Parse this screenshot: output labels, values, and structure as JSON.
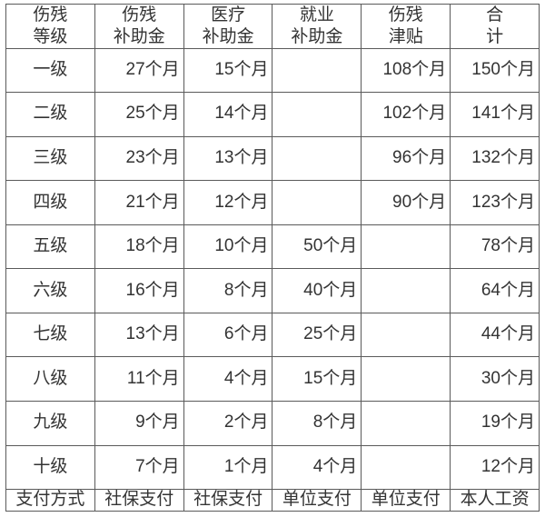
{
  "table": {
    "type": "table",
    "background_color": "#ffffff",
    "border_color": "#5a5a5a",
    "text_color": "#333333",
    "font_size_pt": 15,
    "font_family": "Microsoft YaHei / SimSun",
    "columns": [
      {
        "l1": "伤残",
        "l2": "等级",
        "align": "center"
      },
      {
        "l1": "伤残",
        "l2": "补助金",
        "align": "right"
      },
      {
        "l1": "医疗",
        "l2": "补助金",
        "align": "right"
      },
      {
        "l1": "就业",
        "l2": "补助金",
        "align": "right"
      },
      {
        "l1": "伤残",
        "l2": "津贴",
        "align": "right"
      },
      {
        "l1": "合",
        "l2": "计",
        "align": "right"
      }
    ],
    "rows": [
      [
        "一级",
        "27个月",
        "15个月",
        "",
        "108个月",
        "150个月"
      ],
      [
        "二级",
        "25个月",
        "14个月",
        "",
        "102个月",
        "141个月"
      ],
      [
        "三级",
        "23个月",
        "13个月",
        "",
        "96个月",
        "132个月"
      ],
      [
        "四级",
        "21个月",
        "12个月",
        "",
        "90个月",
        "123个月"
      ],
      [
        "五级",
        "18个月",
        "10个月",
        "50个月",
        "",
        "78个月"
      ],
      [
        "六级",
        "16个月",
        "8个月",
        "40个月",
        "",
        "64个月"
      ],
      [
        "七级",
        "13个月",
        "6个月",
        "25个月",
        "",
        "44个月"
      ],
      [
        "八级",
        "11个月",
        "4个月",
        "15个月",
        "",
        "30个月"
      ],
      [
        "九级",
        "9个月",
        "2个月",
        "8个月",
        "",
        "19个月"
      ],
      [
        "十级",
        "7个月",
        "1个月",
        "4个月",
        "",
        "12个月"
      ]
    ],
    "footer": [
      "支付方式",
      "社保支付",
      "社保支付",
      "单位支付",
      "单位支付",
      "本人工资"
    ]
  }
}
